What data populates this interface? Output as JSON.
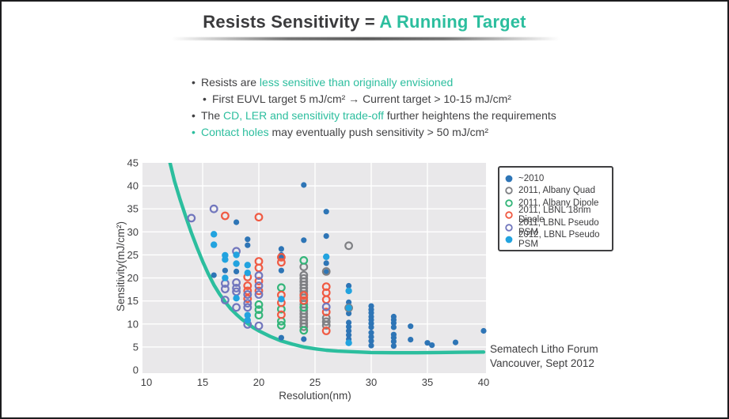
{
  "title": {
    "prefix": "Resists Sensitivity = ",
    "highlight": "A Running Target"
  },
  "colors": {
    "accent_teal": "#2cbe9e",
    "text_dark": "#3b3b3d",
    "plot_bg": "#e9e8ea",
    "grid": "#ffffff"
  },
  "bullets": [
    {
      "indent": 0,
      "bullet_color": "dark",
      "segments": [
        {
          "t": "Resists are ",
          "c": "dark"
        },
        {
          "t": "less sensitive than originally envisioned",
          "c": "teal"
        }
      ]
    },
    {
      "indent": 1,
      "bullet_color": "dark",
      "segments": [
        {
          "t": "First EUVL target 5 mJ/cm² → Current target > 10-15 mJ/cm²",
          "c": "dark"
        }
      ]
    },
    {
      "indent": 0,
      "bullet_color": "dark",
      "segments": [
        {
          "t": "The ",
          "c": "dark"
        },
        {
          "t": "CD, LER and sensitivity trade-off",
          "c": "teal"
        },
        {
          "t": " further heightens the requirements",
          "c": "dark"
        }
      ]
    },
    {
      "indent": 0,
      "bullet_color": "teal",
      "segments": [
        {
          "t": "Contact holes",
          "c": "teal"
        },
        {
          "t": " may eventually push sensitivity > 50 mJ/cm²",
          "c": "dark"
        }
      ]
    }
  ],
  "chart_data": {
    "type": "scatter",
    "xlabel": "Resolution(nm)",
    "ylabel": "Sensitivity(mJ/cm²)",
    "xlim": [
      10,
      40
    ],
    "ylim": [
      0,
      45
    ],
    "xticks": [
      10,
      15,
      20,
      25,
      30,
      35,
      40
    ],
    "yticks": [
      0,
      5,
      10,
      15,
      20,
      25,
      30,
      35,
      40,
      45
    ],
    "grid": true,
    "legend_position": "upper-right",
    "curve": {
      "name": "target-sensitivity-curve",
      "color": "#2cbe9e",
      "points": [
        [
          12.1,
          45
        ],
        [
          12.5,
          41
        ],
        [
          13,
          37
        ],
        [
          13.5,
          33.3
        ],
        [
          14,
          29.8
        ],
        [
          14.5,
          26.6
        ],
        [
          15,
          23.6
        ],
        [
          15.5,
          20.9
        ],
        [
          16,
          18.5
        ],
        [
          16.5,
          16.5
        ],
        [
          17,
          14.8
        ],
        [
          17.5,
          13.3
        ],
        [
          18,
          12.1
        ],
        [
          18.5,
          11.0
        ],
        [
          19,
          10.1
        ],
        [
          19.5,
          9.2
        ],
        [
          20,
          8.5
        ],
        [
          21,
          7.3
        ],
        [
          22,
          6.3
        ],
        [
          23,
          5.6
        ],
        [
          24,
          5.0
        ],
        [
          25,
          4.6
        ],
        [
          26,
          4.3
        ],
        [
          27,
          4.1
        ],
        [
          28,
          4.0
        ],
        [
          30,
          3.8
        ],
        [
          32,
          3.75
        ],
        [
          34,
          3.75
        ],
        [
          36,
          3.8
        ],
        [
          38,
          3.85
        ],
        [
          40,
          3.9
        ]
      ]
    },
    "series": [
      {
        "name": "~2010",
        "color": "#2e75b6",
        "filled": true,
        "points": [
          [
            24,
            40.2
          ],
          [
            26,
            34.4
          ],
          [
            18,
            32.1
          ],
          [
            26,
            29.1
          ],
          [
            19,
            28.4
          ],
          [
            24,
            28.2
          ],
          [
            19,
            27.1
          ],
          [
            22,
            26.3
          ],
          [
            22,
            25.0
          ],
          [
            22,
            24.6
          ],
          [
            26,
            23.2
          ],
          [
            17,
            21.6
          ],
          [
            22,
            21.6
          ],
          [
            18,
            21.4
          ],
          [
            26,
            21.3
          ],
          [
            16,
            20.6
          ],
          [
            28,
            18.3
          ],
          [
            28,
            14.7
          ],
          [
            28,
            12.3
          ],
          [
            28,
            10.3
          ],
          [
            28,
            9.4
          ],
          [
            28,
            8.5
          ],
          [
            28,
            7.6
          ],
          [
            28,
            6.7
          ],
          [
            30,
            13.9
          ],
          [
            30,
            13.1
          ],
          [
            30,
            12.4
          ],
          [
            30,
            11.6
          ],
          [
            30,
            10.9
          ],
          [
            30,
            10.1
          ],
          [
            30,
            9.3
          ],
          [
            30,
            8.1
          ],
          [
            30,
            7.2
          ],
          [
            30,
            6.3
          ],
          [
            30,
            5.3
          ],
          [
            32,
            11.6
          ],
          [
            32,
            10.9
          ],
          [
            32,
            10.2
          ],
          [
            32,
            9.3
          ],
          [
            32,
            7.7
          ],
          [
            32,
            7.0
          ],
          [
            32,
            6.2
          ],
          [
            32,
            5.2
          ],
          [
            33.5,
            9.5
          ],
          [
            33.5,
            6.6
          ],
          [
            35,
            5.9
          ],
          [
            35.4,
            5.4
          ],
          [
            37.5,
            6.0
          ],
          [
            40,
            8.5
          ],
          [
            22,
            7.0
          ],
          [
            24,
            6.7
          ]
        ]
      },
      {
        "name": "2011, Albany Quad",
        "color": "#7f8084",
        "filled": false,
        "points": [
          [
            24,
            22.4
          ],
          [
            24,
            20.6
          ],
          [
            24,
            19.9
          ],
          [
            24,
            19.2
          ],
          [
            24,
            18.5
          ],
          [
            24,
            17.8
          ],
          [
            24,
            17.1
          ],
          [
            24,
            16.4
          ],
          [
            24,
            15.7
          ],
          [
            24,
            15.0
          ],
          [
            24,
            14.3
          ],
          [
            24,
            13.6
          ],
          [
            24,
            12.9
          ],
          [
            24,
            12.2
          ],
          [
            24,
            11.5
          ],
          [
            24,
            10.8
          ],
          [
            24,
            10.1
          ],
          [
            24,
            9.4
          ],
          [
            26,
            21.4
          ],
          [
            26,
            11.3
          ],
          [
            26,
            10.5
          ],
          [
            26,
            9.7
          ],
          [
            28,
            27.0
          ],
          [
            28,
            13.5
          ]
        ]
      },
      {
        "name": "2011, Albany Dipole",
        "color": "#33b579",
        "filled": false,
        "points": [
          [
            24,
            23.8
          ],
          [
            22,
            17.9
          ],
          [
            22,
            13.2
          ],
          [
            22,
            10.6
          ],
          [
            22,
            9.7
          ],
          [
            20,
            14.2
          ],
          [
            20,
            13.1
          ],
          [
            20,
            11.9
          ],
          [
            24,
            13.6
          ],
          [
            24,
            8.6
          ]
        ]
      },
      {
        "name": "2011, LBNL 18nm Dipole",
        "color": "#f05a43",
        "filled": false,
        "points": [
          [
            17,
            33.5
          ],
          [
            20,
            33.2
          ],
          [
            19,
            20.2
          ],
          [
            19,
            18.3
          ],
          [
            19,
            17.2
          ],
          [
            19,
            15.5
          ],
          [
            20,
            23.6
          ],
          [
            20,
            22.2
          ],
          [
            20,
            19.3
          ],
          [
            20,
            17.2
          ],
          [
            22,
            24.5
          ],
          [
            22,
            23.4
          ],
          [
            22,
            16.3
          ],
          [
            22,
            14.6
          ],
          [
            22,
            12.0
          ],
          [
            24,
            16.2
          ],
          [
            24,
            15.1
          ],
          [
            26,
            18.1
          ],
          [
            26,
            16.8
          ],
          [
            26,
            15.3
          ],
          [
            26,
            12.6
          ],
          [
            26,
            8.5
          ]
        ]
      },
      {
        "name": "2011, LBNL Pseudo PSM",
        "color": "#7176bd",
        "filled": false,
        "points": [
          [
            14,
            33.0
          ],
          [
            16,
            35.0
          ],
          [
            17,
            18.8
          ],
          [
            17,
            17.6
          ],
          [
            17,
            15.2
          ],
          [
            18,
            25.8
          ],
          [
            18,
            19.0
          ],
          [
            18,
            17.8
          ],
          [
            18,
            17.0
          ],
          [
            18,
            13.6
          ],
          [
            19,
            16.4
          ],
          [
            19,
            14.5
          ],
          [
            19,
            13.6
          ],
          [
            19,
            9.9
          ],
          [
            20,
            20.5
          ],
          [
            20,
            18.3
          ],
          [
            20,
            16.4
          ],
          [
            20,
            9.6
          ],
          [
            26,
            13.7
          ]
        ]
      },
      {
        "name": "2012, LBNL Pseudo PSM",
        "color": "#22a3df",
        "filled": true,
        "points": [
          [
            16,
            29.5
          ],
          [
            16,
            27.2
          ],
          [
            17,
            24.9
          ],
          [
            17,
            24.0
          ],
          [
            17,
            20.0
          ],
          [
            18,
            25.0
          ],
          [
            18,
            23.1
          ],
          [
            18,
            15.6
          ],
          [
            19,
            22.8
          ],
          [
            19,
            21.1
          ],
          [
            19,
            11.9
          ],
          [
            19,
            10.8
          ],
          [
            22,
            15.4
          ],
          [
            26,
            24.6
          ],
          [
            28,
            17.2
          ],
          [
            28,
            13.5
          ],
          [
            28,
            5.9
          ]
        ]
      }
    ]
  },
  "footer": {
    "line1": "Sematech Litho Forum",
    "line2": "Vancouver, Sept 2012"
  }
}
